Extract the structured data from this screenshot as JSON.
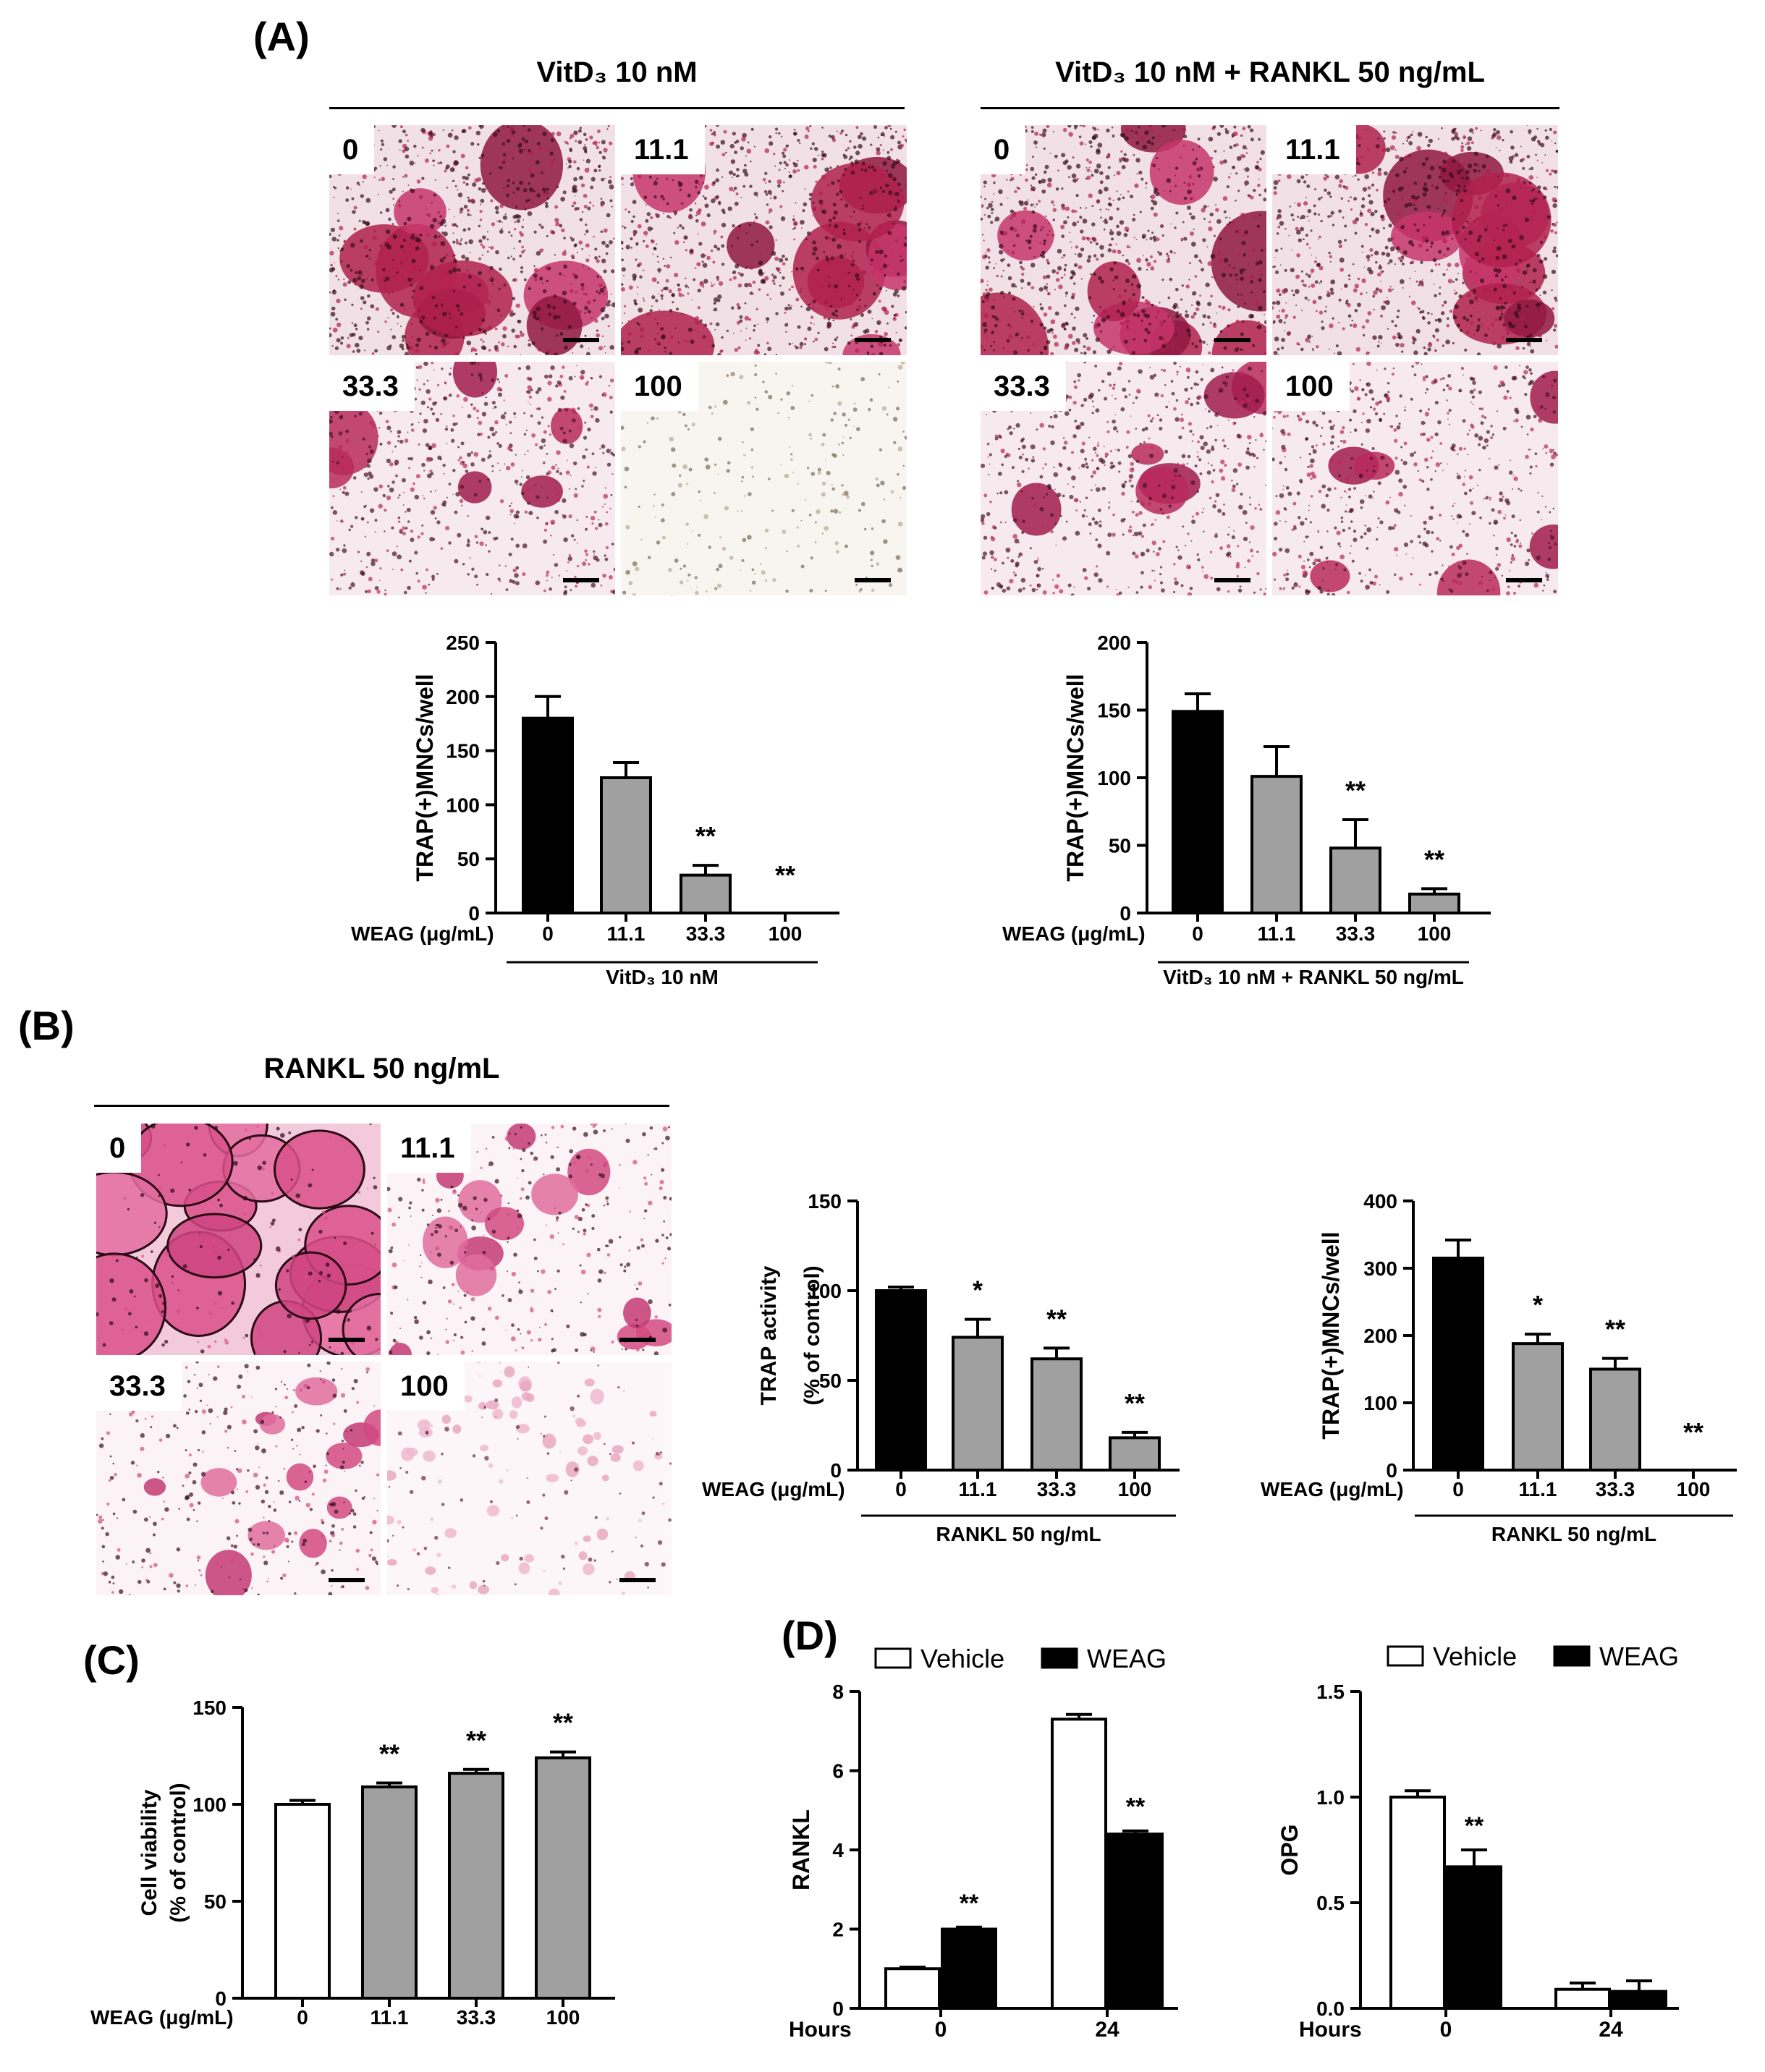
{
  "panels": {
    "A": "(A)",
    "B": "(B)",
    "C": "(C)",
    "D": "(D)"
  },
  "micrograph_sets": [
    {
      "title": "VitD₃ 10 nM",
      "tiles": [
        {
          "label": "0",
          "stain": "dense-magenta"
        },
        {
          "label": "11.1",
          "stain": "dense-magenta"
        },
        {
          "label": "33.3",
          "stain": "medium-magenta"
        },
        {
          "label": "100",
          "stain": "sparse-brown"
        }
      ]
    },
    {
      "title": "VitD₃ 10 nM + RANKL 50 ng/mL",
      "tiles": [
        {
          "label": "0",
          "stain": "dense-magenta"
        },
        {
          "label": "11.1",
          "stain": "dense-magenta"
        },
        {
          "label": "33.3",
          "stain": "medium-magenta"
        },
        {
          "label": "100",
          "stain": "medium-magenta"
        }
      ]
    },
    {
      "title": "RANKL 50 ng/mL",
      "tiles": [
        {
          "label": "0",
          "stain": "pink-large-cells"
        },
        {
          "label": "11.1",
          "stain": "pink-scattered"
        },
        {
          "label": "33.3",
          "stain": "pink-scattered"
        },
        {
          "label": "100",
          "stain": "pale-pink"
        }
      ]
    }
  ],
  "colors": {
    "control_bar": "#000000",
    "treated_bar": "#a0a0a0",
    "vehicle_bar": "#ffffff",
    "weag_bar": "#000000",
    "stain_magenta": "#b0204f",
    "stain_pink": "#d9508a"
  },
  "chart_data": [
    {
      "id": "A1",
      "type": "bar",
      "xlabel": "WEAG (μg/mL)",
      "ylabel": "TRAP(+)MNCs/well",
      "group_label": "VitD₃ 10 nM",
      "categories": [
        "0",
        "11.1",
        "33.3",
        "100"
      ],
      "values": [
        180,
        125,
        35,
        0
      ],
      "errors": [
        20,
        14,
        9,
        0
      ],
      "fills": [
        "#000000",
        "#a0a0a0",
        "#a0a0a0",
        "#a0a0a0"
      ],
      "sig": [
        "",
        "",
        "**",
        "**"
      ],
      "ylim": [
        0,
        250
      ],
      "yticks": [
        "0",
        "50",
        "100",
        "150",
        "200",
        "250"
      ]
    },
    {
      "id": "A2",
      "type": "bar",
      "xlabel": "WEAG (μg/mL)",
      "ylabel": "TRAP(+)MNCs/well",
      "group_label": "VitD₃ 10 nM + RANKL 50 ng/mL",
      "categories": [
        "0",
        "11.1",
        "33.3",
        "100"
      ],
      "values": [
        149,
        101,
        48,
        14
      ],
      "errors": [
        13,
        22,
        21,
        4
      ],
      "fills": [
        "#000000",
        "#a0a0a0",
        "#a0a0a0",
        "#a0a0a0"
      ],
      "sig": [
        "",
        "",
        "**",
        "**"
      ],
      "ylim": [
        0,
        200
      ],
      "yticks": [
        "0",
        "50",
        "100",
        "150",
        "200"
      ]
    },
    {
      "id": "B1",
      "type": "bar",
      "xlabel": "WEAG (μg/mL)",
      "ylabel": "TRAP activity",
      "ylabel2": "(% of control)",
      "group_label": "RANKL 50 ng/mL",
      "categories": [
        "0",
        "11.1",
        "33.3",
        "100"
      ],
      "values": [
        100,
        74,
        62,
        18
      ],
      "errors": [
        2,
        10,
        6,
        3
      ],
      "fills": [
        "#000000",
        "#a0a0a0",
        "#a0a0a0",
        "#a0a0a0"
      ],
      "sig": [
        "",
        "*",
        "**",
        "**"
      ],
      "ylim": [
        0,
        150
      ],
      "yticks": [
        "0",
        "50",
        "100",
        "150"
      ]
    },
    {
      "id": "B2",
      "type": "bar",
      "xlabel": "WEAG (μg/mL)",
      "ylabel": "TRAP(+)MNCs/well",
      "group_label": "RANKL 50 ng/mL",
      "categories": [
        "0",
        "11.1",
        "33.3",
        "100"
      ],
      "values": [
        315,
        188,
        150,
        0
      ],
      "errors": [
        27,
        14,
        16,
        0
      ],
      "fills": [
        "#000000",
        "#a0a0a0",
        "#a0a0a0",
        "#a0a0a0"
      ],
      "sig": [
        "",
        "*",
        "**",
        "**"
      ],
      "ylim": [
        0,
        400
      ],
      "yticks": [
        "0",
        "100",
        "200",
        "300",
        "400"
      ]
    },
    {
      "id": "C",
      "type": "bar",
      "xlabel": "WEAG (μg/mL)",
      "ylabel": "Cell viability",
      "ylabel2": "(% of control)",
      "categories": [
        "0",
        "11.1",
        "33.3",
        "100"
      ],
      "values": [
        100,
        109,
        116,
        124
      ],
      "errors": [
        2,
        2,
        2,
        3
      ],
      "fills": [
        "#ffffff",
        "#a0a0a0",
        "#a0a0a0",
        "#a0a0a0"
      ],
      "sig": [
        "",
        "**",
        "**",
        "**"
      ],
      "ylim": [
        0,
        150
      ],
      "yticks": [
        "0",
        "50",
        "100",
        "150"
      ]
    },
    {
      "id": "D1",
      "type": "bar",
      "xlabel": "Hours",
      "ylabel": "RANKL",
      "categories": [
        "0",
        "24"
      ],
      "series": [
        {
          "name": "Vehicle",
          "values": [
            1.0,
            7.3
          ],
          "errors": [
            0.04,
            0.12
          ],
          "sig": [
            "",
            ""
          ]
        },
        {
          "name": "WEAG",
          "values": [
            2.0,
            4.4
          ],
          "errors": [
            0.05,
            0.08
          ],
          "sig": [
            "**",
            "**"
          ]
        }
      ],
      "ylim": [
        0,
        8
      ],
      "yticks": [
        "0",
        "2",
        "4",
        "6",
        "8"
      ]
    },
    {
      "id": "D2",
      "type": "bar",
      "xlabel": "Hours",
      "ylabel": "OPG",
      "categories": [
        "0",
        "24"
      ],
      "series": [
        {
          "name": "Vehicle",
          "values": [
            1.0,
            0.09
          ],
          "errors": [
            0.03,
            0.03
          ],
          "sig": [
            "",
            ""
          ]
        },
        {
          "name": "WEAG",
          "values": [
            0.67,
            0.08
          ],
          "errors": [
            0.08,
            0.05
          ],
          "sig": [
            "**",
            ""
          ]
        }
      ],
      "ylim": [
        0,
        1.5
      ],
      "yticks": [
        "0.0",
        "0.5",
        "1.0",
        "1.5"
      ]
    }
  ]
}
